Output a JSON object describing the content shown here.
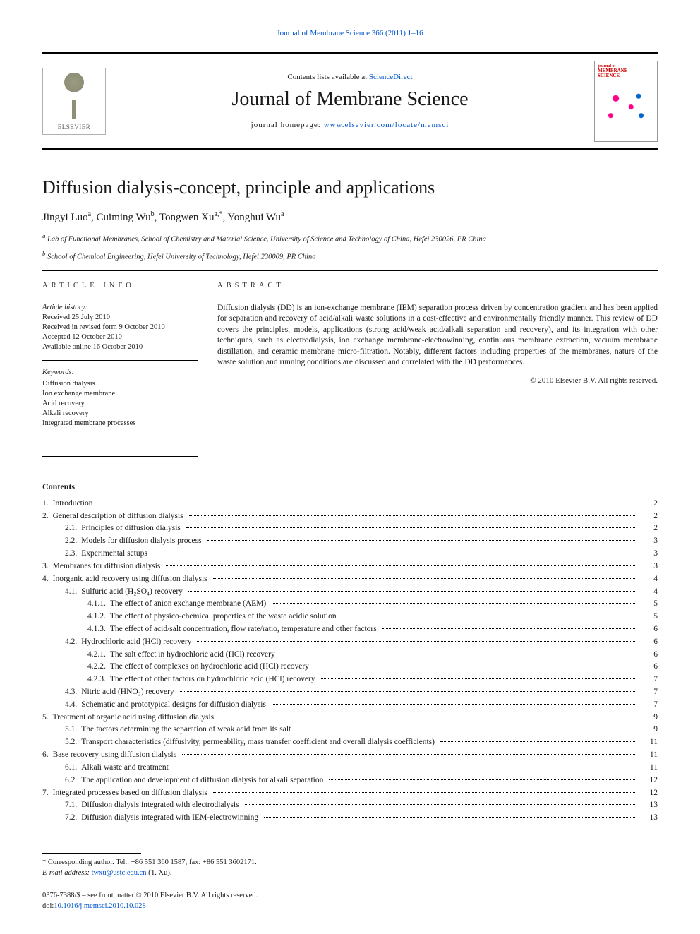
{
  "top_link": {
    "prefix": "",
    "journal": "Journal of Membrane Science",
    "citation": " 366 (2011) 1–16"
  },
  "header": {
    "contents_prefix": "Contents lists available at ",
    "contents_link": "ScienceDirect",
    "journal_name": "Journal of Membrane Science",
    "home_prefix": "journal homepage: ",
    "home_url": "www.elsevier.com/locate/memsci",
    "elsevier_brand": "ELSEVIER",
    "cover_title_line1": "journal of",
    "cover_title_line2": "MEMBRANE",
    "cover_title_line3": "SCIENCE"
  },
  "article": {
    "title": "Diffusion dialysis-concept, principle and applications",
    "authors_html": "Jingyi Luo<sup>a</sup>, Cuiming Wu<sup>b</sup>, Tongwen Xu<sup>a,*</sup>, Yonghui Wu<sup>a</sup>",
    "affiliations": [
      {
        "tag": "a",
        "text": "Lab of Functional Membranes, School of Chemistry and Material Science, University of Science and Technology of China, Hefei 230026, PR China"
      },
      {
        "tag": "b",
        "text": "School of Chemical Engineering, Hefei University of Technology, Hefei 230009, PR China"
      }
    ]
  },
  "info": {
    "heading": "article info",
    "history_label": "Article history:",
    "history": [
      "Received 25 July 2010",
      "Received in revised form 9 October 2010",
      "Accepted 12 October 2010",
      "Available online 16 October 2010"
    ],
    "keywords_label": "Keywords:",
    "keywords": [
      "Diffusion dialysis",
      "Ion exchange membrane",
      "Acid recovery",
      "Alkali recovery",
      "Integrated membrane processes"
    ]
  },
  "abstract": {
    "heading": "abstract",
    "text": "Diffusion dialysis (DD) is an ion-exchange membrane (IEM) separation process driven by concentration gradient and has been applied for separation and recovery of acid/alkali waste solutions in a cost-effective and environmentally friendly manner. This review of DD covers the principles, models, applications (strong acid/weak acid/alkali separation and recovery), and its integration with other techniques, such as electrodialysis, ion exchange membrane-electrowinning, continuous membrane extraction, vacuum membrane distillation, and ceramic membrane micro-filtration. Notably, different factors including properties of the membranes, nature of the waste solution and running conditions are discussed and correlated with the DD performances.",
    "copyright": "© 2010 Elsevier B.V. All rights reserved."
  },
  "contents": {
    "heading": "Contents",
    "items": [
      {
        "lvl": 0,
        "num": "1.",
        "title": "Introduction",
        "page": "2"
      },
      {
        "lvl": 0,
        "num": "2.",
        "title": "General description of diffusion dialysis",
        "page": "2"
      },
      {
        "lvl": 1,
        "num": "2.1.",
        "title": "Principles of diffusion dialysis",
        "page": "2"
      },
      {
        "lvl": 1,
        "num": "2.2.",
        "title": "Models for diffusion dialysis process",
        "page": "3"
      },
      {
        "lvl": 1,
        "num": "2.3.",
        "title": "Experimental setups",
        "page": "3"
      },
      {
        "lvl": 0,
        "num": "3.",
        "title": "Membranes for diffusion dialysis",
        "page": "3"
      },
      {
        "lvl": 0,
        "num": "4.",
        "title": "Inorganic acid recovery using diffusion dialysis",
        "page": "4"
      },
      {
        "lvl": 1,
        "num": "4.1.",
        "title": "Sulfuric acid (H₂SO₄) recovery",
        "page": "4"
      },
      {
        "lvl": 2,
        "num": "4.1.1.",
        "title": "The effect of anion exchange membrane (AEM)",
        "page": "5"
      },
      {
        "lvl": 2,
        "num": "4.1.2.",
        "title": "The effect of physico-chemical properties of the waste acidic solution",
        "page": "5"
      },
      {
        "lvl": 2,
        "num": "4.1.3.",
        "title": "The effect of acid/salt concentration, flow rate/ratio, temperature and other factors",
        "page": "6"
      },
      {
        "lvl": 1,
        "num": "4.2.",
        "title": "Hydrochloric acid (HCl) recovery",
        "page": "6"
      },
      {
        "lvl": 2,
        "num": "4.2.1.",
        "title": "The salt effect in hydrochloric acid (HCl) recovery",
        "page": "6"
      },
      {
        "lvl": 2,
        "num": "4.2.2.",
        "title": "The effect of complexes on hydrochloric acid (HCl) recovery",
        "page": "6"
      },
      {
        "lvl": 2,
        "num": "4.2.3.",
        "title": "The effect of other factors on hydrochloric acid (HCl) recovery",
        "page": "7"
      },
      {
        "lvl": 1,
        "num": "4.3.",
        "title": "Nitric acid (HNO₃) recovery",
        "page": "7"
      },
      {
        "lvl": 1,
        "num": "4.4.",
        "title": "Schematic and prototypical designs for diffusion dialysis",
        "page": "7"
      },
      {
        "lvl": 0,
        "num": "5.",
        "title": "Treatment of organic acid using diffusion dialysis",
        "page": "9"
      },
      {
        "lvl": 1,
        "num": "5.1.",
        "title": "The factors determining the separation of weak acid from its salt",
        "page": "9"
      },
      {
        "lvl": 1,
        "num": "5.2.",
        "title": "Transport characteristics (diffusivity, permeability, mass transfer coefficient and overall dialysis coefficients)",
        "page": "11"
      },
      {
        "lvl": 0,
        "num": "6.",
        "title": "Base recovery using diffusion dialysis",
        "page": "11"
      },
      {
        "lvl": 1,
        "num": "6.1.",
        "title": "Alkali waste and treatment",
        "page": "11"
      },
      {
        "lvl": 1,
        "num": "6.2.",
        "title": "The application and development of diffusion dialysis for alkali separation",
        "page": "12"
      },
      {
        "lvl": 0,
        "num": "7.",
        "title": "Integrated processes based on diffusion dialysis",
        "page": "12"
      },
      {
        "lvl": 1,
        "num": "7.1.",
        "title": "Diffusion dialysis integrated with electrodialysis",
        "page": "13"
      },
      {
        "lvl": 1,
        "num": "7.2.",
        "title": "Diffusion dialysis integrated with IEM-electrowinning",
        "page": "13"
      }
    ]
  },
  "footnote": {
    "corresponding": "* Corresponding author. Tel.: +86 551 360 1587; fax: +86 551 3602171.",
    "email_label": "E-mail address: ",
    "email": "twxu@ustc.edu.cn",
    "email_suffix": " (T. Xu)."
  },
  "front_matter": {
    "line1": "0376-7388/$ – see front matter © 2010 Elsevier B.V. All rights reserved.",
    "doi_prefix": "doi:",
    "doi": "10.1016/j.memsci.2010.10.028"
  },
  "style": {
    "link_color": "#0055cc",
    "text_color": "#1a1a1a",
    "rule_color": "#000000",
    "body_bg": "#ffffff",
    "cover_accent": "#cc0000"
  }
}
